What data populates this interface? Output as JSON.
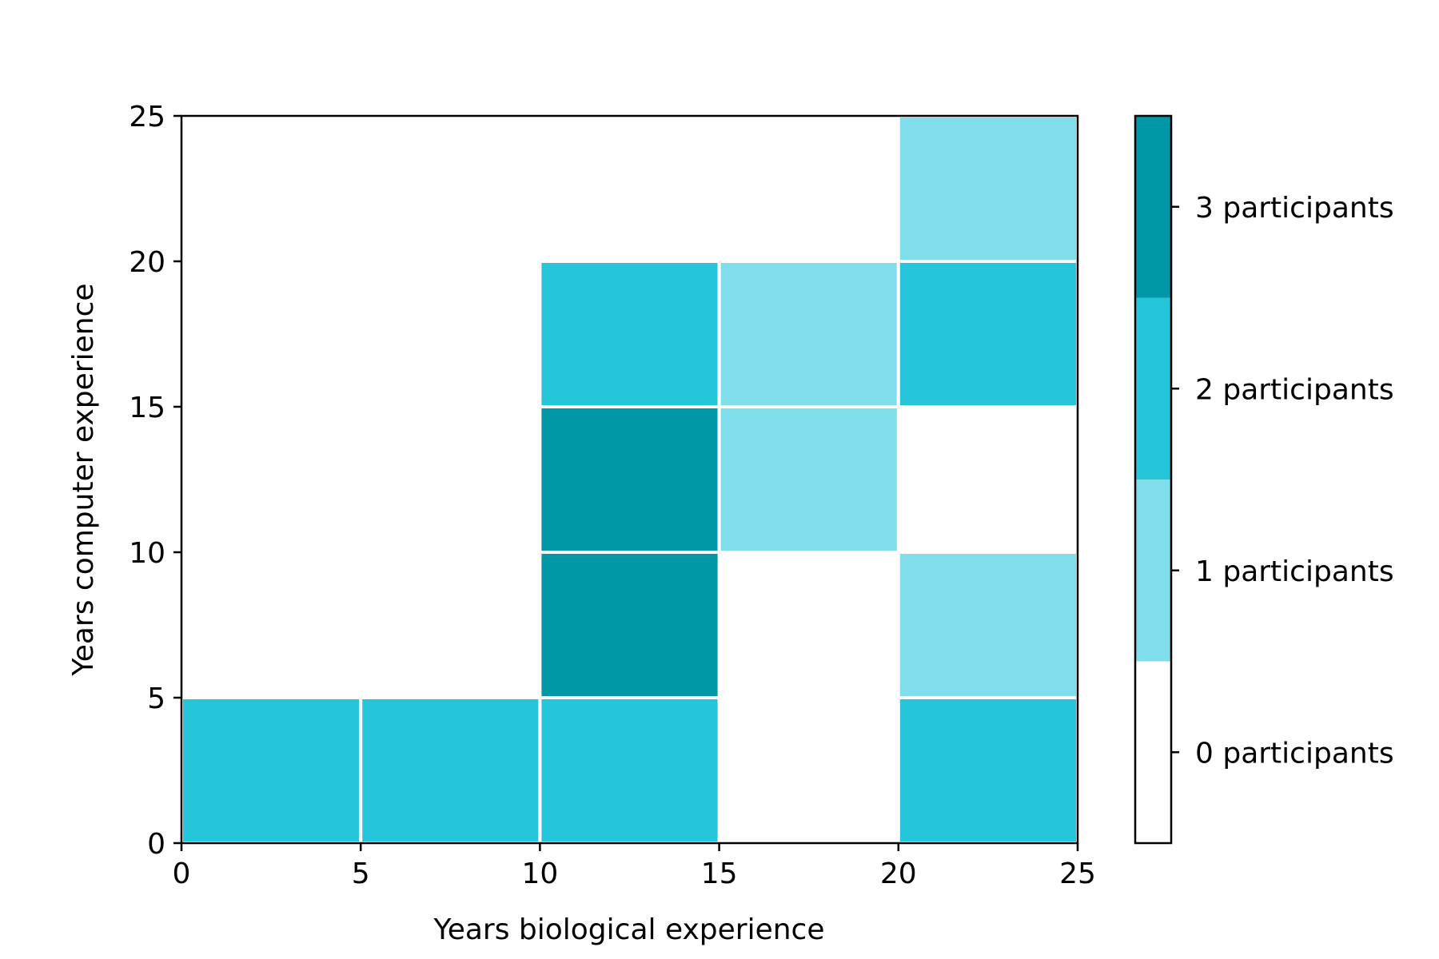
{
  "chart_data": {
    "type": "heatmap",
    "title": "",
    "xlabel": "Years biological experience",
    "ylabel": "Years computer experience",
    "xlim": [
      0,
      25
    ],
    "ylim": [
      0,
      25
    ],
    "x_ticks": [
      "0",
      "5",
      "10",
      "15",
      "20",
      "25"
    ],
    "y_ticks": [
      "0",
      "5",
      "10",
      "15",
      "20",
      "25"
    ],
    "bin_size": 5,
    "cells": [
      {
        "x": [
          0,
          5
        ],
        "y": [
          0,
          5
        ],
        "value": 2
      },
      {
        "x": [
          5,
          10
        ],
        "y": [
          0,
          5
        ],
        "value": 2
      },
      {
        "x": [
          10,
          15
        ],
        "y": [
          0,
          5
        ],
        "value": 2
      },
      {
        "x": [
          20,
          25
        ],
        "y": [
          0,
          5
        ],
        "value": 2
      },
      {
        "x": [
          10,
          15
        ],
        "y": [
          5,
          10
        ],
        "value": 3
      },
      {
        "x": [
          20,
          25
        ],
        "y": [
          5,
          10
        ],
        "value": 1
      },
      {
        "x": [
          10,
          15
        ],
        "y": [
          10,
          15
        ],
        "value": 3
      },
      {
        "x": [
          15,
          20
        ],
        "y": [
          10,
          15
        ],
        "value": 1
      },
      {
        "x": [
          10,
          15
        ],
        "y": [
          15,
          20
        ],
        "value": 2
      },
      {
        "x": [
          15,
          20
        ],
        "y": [
          15,
          20
        ],
        "value": 1
      },
      {
        "x": [
          20,
          25
        ],
        "y": [
          15,
          20
        ],
        "value": 2
      },
      {
        "x": [
          20,
          25
        ],
        "y": [
          20,
          25
        ],
        "value": 1
      }
    ],
    "colorbar": {
      "levels": [
        {
          "value": 0,
          "label": "0 participants",
          "color": "#ffffff"
        },
        {
          "value": 1,
          "label": "1 participants",
          "color": "#80deea"
        },
        {
          "value": 2,
          "label": "2 participants",
          "color": "#26c6da"
        },
        {
          "value": 3,
          "label": "3 participants",
          "color": "#0097a7"
        }
      ],
      "range": [
        -0.5,
        3.5
      ],
      "placement": "right"
    },
    "grid": false,
    "cell_edge_color": "#ffffff"
  }
}
